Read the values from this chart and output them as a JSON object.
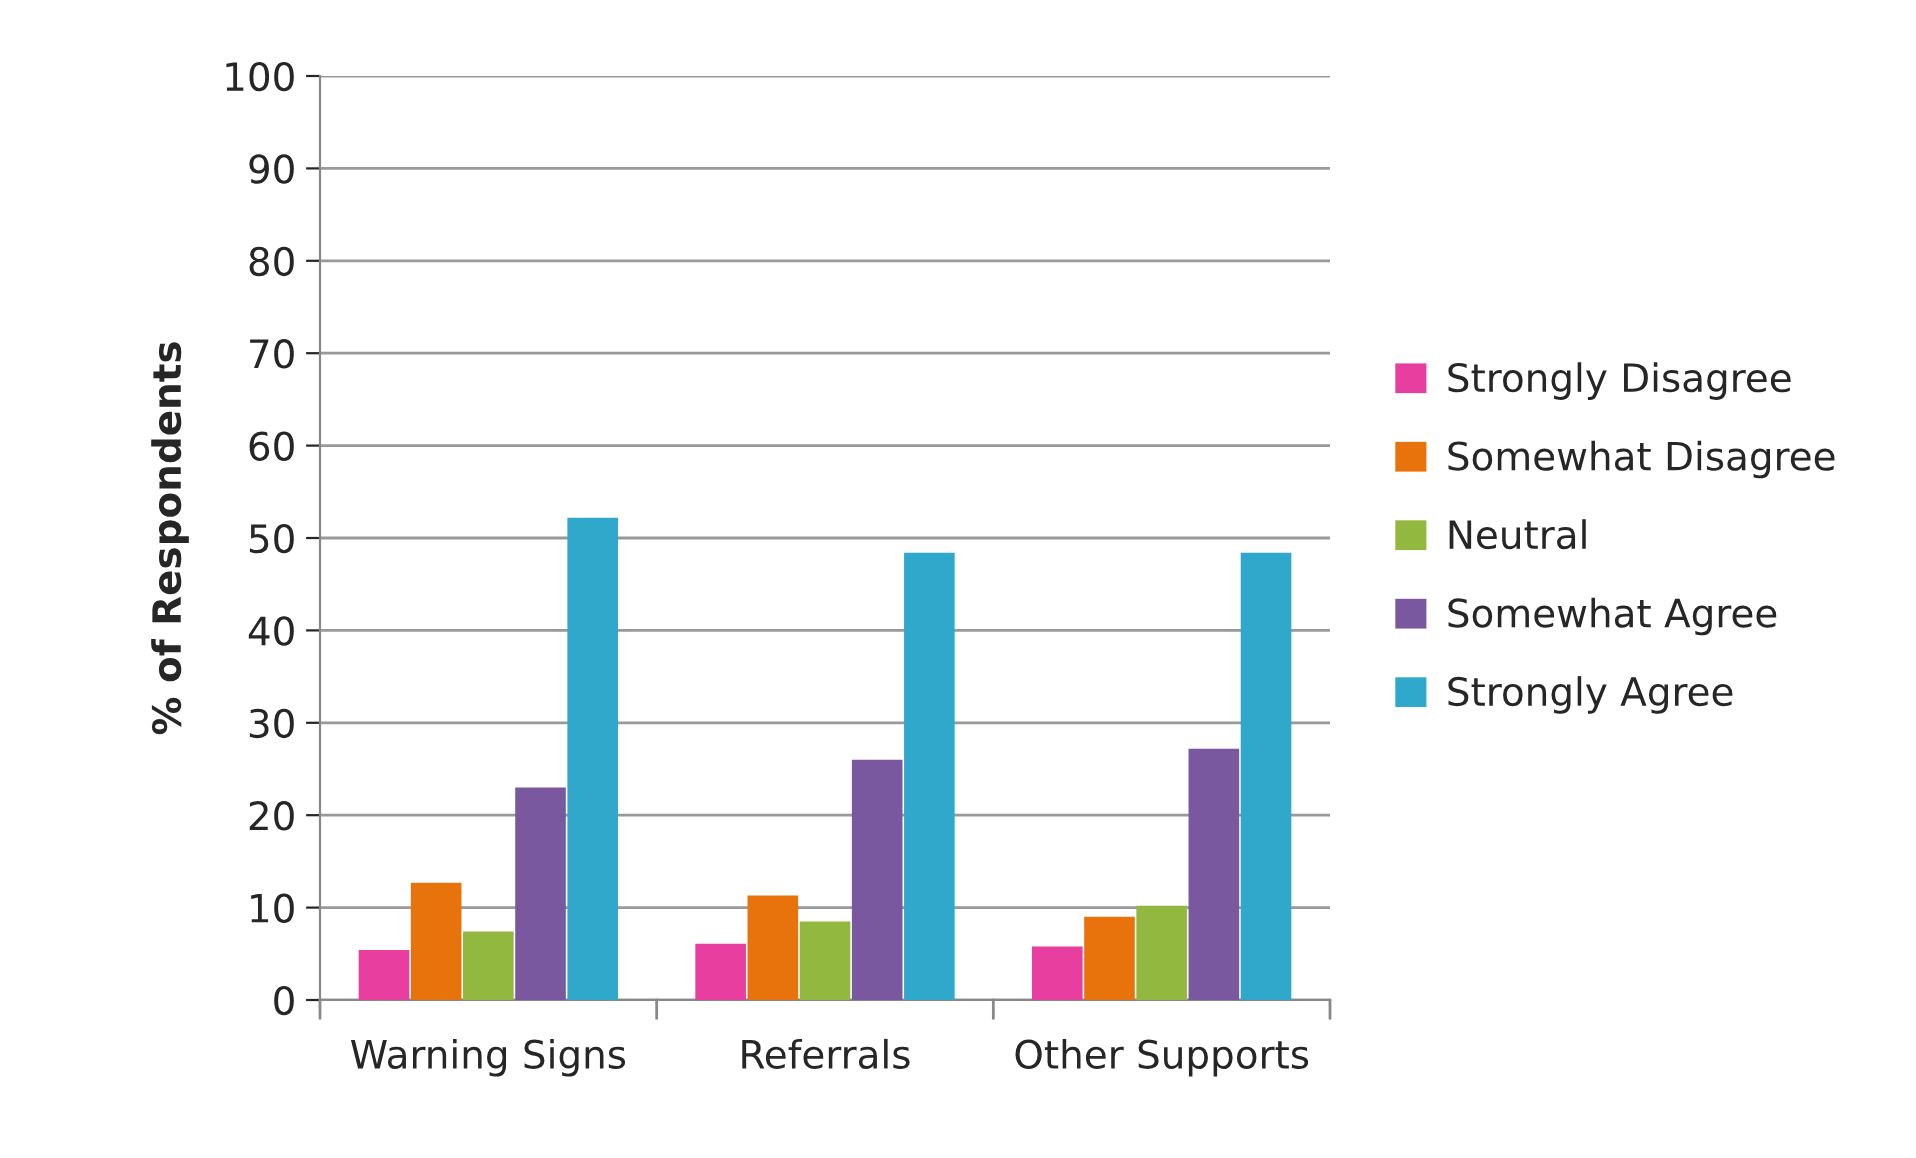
{
  "chart_data": {
    "type": "bar",
    "ylabel": "% of Respondents",
    "categories": [
      "Warning Signs",
      "Referrals",
      "Other Supports"
    ],
    "series": [
      {
        "name": "Strongly Disagree",
        "color": "#e83ea0",
        "values": [
          5.4,
          6.1,
          5.8
        ]
      },
      {
        "name": "Somewhat Disagree",
        "color": "#e8720c",
        "values": [
          12.7,
          11.3,
          9.0
        ]
      },
      {
        "name": "Neutral",
        "color": "#93b840",
        "values": [
          7.4,
          8.5,
          10.2
        ]
      },
      {
        "name": "Somewhat Agree",
        "color": "#7a58a0",
        "values": [
          23.0,
          26.0,
          27.2
        ]
      },
      {
        "name": "Strongly Agree",
        "color": "#2fa8cc",
        "values": [
          52.2,
          48.4,
          48.4
        ]
      }
    ],
    "ylim": [
      0,
      100
    ],
    "yticks": [
      0,
      10,
      20,
      30,
      40,
      50,
      60,
      70,
      80,
      90,
      100
    ],
    "grid": "y",
    "legend": "right"
  }
}
